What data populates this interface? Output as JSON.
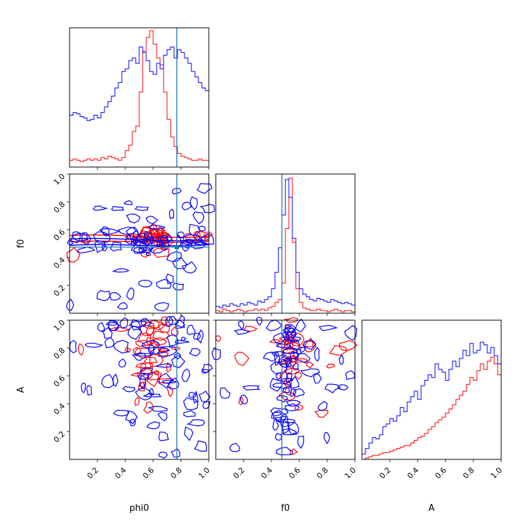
{
  "chart_data": {
    "type": "corner",
    "parameters": [
      "phi0",
      "f0",
      "A"
    ],
    "xlim": [
      0,
      1
    ],
    "ylim": [
      0,
      1
    ],
    "tick_values": [
      0.2,
      0.4,
      0.6,
      0.8,
      1.0
    ],
    "tick_labels": [
      "0.2",
      "0.4",
      "0.6",
      "0.8",
      "1.0"
    ],
    "truth": {
      "phi0": 0.77,
      "f0": 0.475
    },
    "colors": {
      "red": "#ff0000",
      "blue": "#0000ff",
      "truth": "#1f77b4"
    },
    "series": [
      {
        "color": "red",
        "phi0": [
          0.05,
          0.06,
          0.05,
          0.04,
          0.05,
          0.06,
          0.05,
          0.06,
          0.05,
          0.07,
          0.06,
          0.08,
          0.07,
          0.06,
          0.05,
          0.07,
          0.12,
          0.16,
          0.26,
          0.3,
          0.55,
          0.85,
          0.95,
          1.0,
          0.9,
          0.8,
          0.75,
          0.55,
          0.35,
          0.22,
          0.15,
          0.1,
          0.08,
          0.07,
          0.06,
          0.05,
          0.05,
          0.06,
          0.05,
          0.05
        ],
        "f0": [
          0.02,
          0.01,
          0.03,
          0.02,
          0.01,
          0.02,
          0.03,
          0.02,
          0.01,
          0.02,
          0.02,
          0.03,
          0.02,
          0.03,
          0.02,
          0.04,
          0.05,
          0.08,
          0.1,
          0.22,
          0.62,
          0.99,
          0.52,
          0.18,
          0.08,
          0.04,
          0.03,
          0.02,
          0.02,
          0.03,
          0.02,
          0.02,
          0.01,
          0.02,
          0.03,
          0.02,
          0.01,
          0.02,
          0.02,
          0.01
        ],
        "A": [
          0.0,
          0.01,
          0.02,
          0.03,
          0.03,
          0.04,
          0.05,
          0.05,
          0.06,
          0.07,
          0.08,
          0.09,
          0.1,
          0.1,
          0.12,
          0.14,
          0.16,
          0.17,
          0.19,
          0.22,
          0.24,
          0.27,
          0.29,
          0.31,
          0.34,
          0.37,
          0.4,
          0.44,
          0.47,
          0.5,
          0.55,
          0.6,
          0.58,
          0.65,
          0.7,
          0.66,
          0.72,
          0.75,
          0.7,
          0.62
        ]
      },
      {
        "color": "blue",
        "phi0": [
          0.38,
          0.4,
          0.39,
          0.37,
          0.36,
          0.34,
          0.35,
          0.38,
          0.36,
          0.4,
          0.44,
          0.48,
          0.52,
          0.58,
          0.62,
          0.7,
          0.72,
          0.78,
          0.8,
          0.76,
          0.88,
          0.84,
          0.78,
          0.7,
          0.68,
          0.76,
          0.72,
          0.82,
          0.86,
          0.88,
          0.8,
          0.86,
          0.84,
          0.8,
          0.76,
          0.7,
          0.66,
          0.62,
          0.58,
          0.56
        ],
        "f0": [
          0.05,
          0.04,
          0.06,
          0.05,
          0.07,
          0.06,
          0.05,
          0.07,
          0.06,
          0.08,
          0.07,
          0.06,
          0.09,
          0.08,
          0.1,
          0.12,
          0.18,
          0.3,
          0.48,
          0.72,
          0.98,
          0.85,
          0.55,
          0.3,
          0.18,
          0.14,
          0.12,
          0.1,
          0.09,
          0.11,
          0.1,
          0.09,
          0.08,
          0.1,
          0.09,
          0.08,
          0.07,
          0.08,
          0.07,
          0.06
        ],
        "A": [
          0.04,
          0.08,
          0.12,
          0.16,
          0.15,
          0.18,
          0.24,
          0.26,
          0.3,
          0.28,
          0.32,
          0.38,
          0.35,
          0.42,
          0.46,
          0.5,
          0.44,
          0.54,
          0.58,
          0.62,
          0.6,
          0.7,
          0.66,
          0.64,
          0.58,
          0.66,
          0.72,
          0.68,
          0.74,
          0.8,
          0.76,
          0.85,
          0.78,
          0.8,
          0.86,
          0.84,
          0.78,
          0.82,
          0.76,
          0.7
        ]
      }
    ]
  }
}
